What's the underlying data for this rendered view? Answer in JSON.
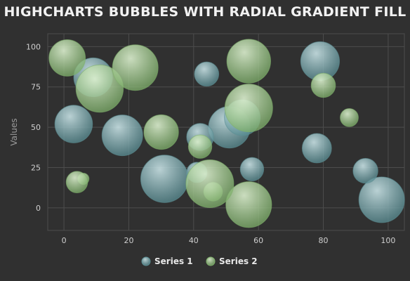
{
  "title": "HIGHCHARTS BUBBLES WITH RADIAL GRADIENT FILL",
  "colors": {
    "background": "#303030",
    "grid": "#4d4d4d",
    "series1": "#5b8f95",
    "series1_light": "#c9e3e6",
    "series2": "#7fb06b",
    "series2_light": "#dcf0cf"
  },
  "chart_data": {
    "type": "scatter",
    "subtype": "bubble",
    "title": "HIGHCHARTS BUBBLES WITH RADIAL GRADIENT FILL",
    "xlabel": "",
    "ylabel": "Values",
    "xlim": [
      -5,
      105
    ],
    "ylim": [
      -14,
      108
    ],
    "xticks": [
      0,
      20,
      40,
      60,
      80,
      100
    ],
    "yticks": [
      0,
      25,
      50,
      75,
      100
    ],
    "grid": true,
    "legend_position": "bottom-center",
    "series": [
      {
        "name": "Series 1",
        "points": [
          {
            "x": 9,
            "y": 81,
            "z": 63
          },
          {
            "x": 98,
            "y": 5,
            "z": 89
          },
          {
            "x": 51,
            "y": 50,
            "z": 73
          },
          {
            "x": 41,
            "y": 22,
            "z": 14
          },
          {
            "x": 58,
            "y": 24,
            "z": 20
          },
          {
            "x": 78,
            "y": 37,
            "z": 34
          },
          {
            "x": 55,
            "y": 56,
            "z": 53
          },
          {
            "x": 18,
            "y": 45,
            "z": 70
          },
          {
            "x": 42,
            "y": 44,
            "z": 28
          },
          {
            "x": 3,
            "y": 52,
            "z": 59
          },
          {
            "x": 31,
            "y": 18,
            "z": 97
          },
          {
            "x": 79,
            "y": 91,
            "z": 63
          },
          {
            "x": 93,
            "y": 23,
            "z": 23
          },
          {
            "x": 44,
            "y": 83,
            "z": 22
          }
        ]
      },
      {
        "name": "Series 2",
        "points": [
          {
            "x": 42,
            "y": 38,
            "z": 20
          },
          {
            "x": 6,
            "y": 18,
            "z": 1
          },
          {
            "x": 1,
            "y": 93,
            "z": 55
          },
          {
            "x": 57,
            "y": 2,
            "z": 90
          },
          {
            "x": 80,
            "y": 76,
            "z": 22
          },
          {
            "x": 11,
            "y": 74,
            "z": 96
          },
          {
            "x": 88,
            "y": 56,
            "z": 10
          },
          {
            "x": 30,
            "y": 47,
            "z": 49
          },
          {
            "x": 57,
            "y": 62,
            "z": 98
          },
          {
            "x": 4,
            "y": 16,
            "z": 16
          },
          {
            "x": 46,
            "y": 10,
            "z": 11
          },
          {
            "x": 22,
            "y": 87,
            "z": 89
          },
          {
            "x": 57,
            "y": 91,
            "z": 82
          },
          {
            "x": 45,
            "y": 15,
            "z": 98
          }
        ]
      }
    ]
  }
}
